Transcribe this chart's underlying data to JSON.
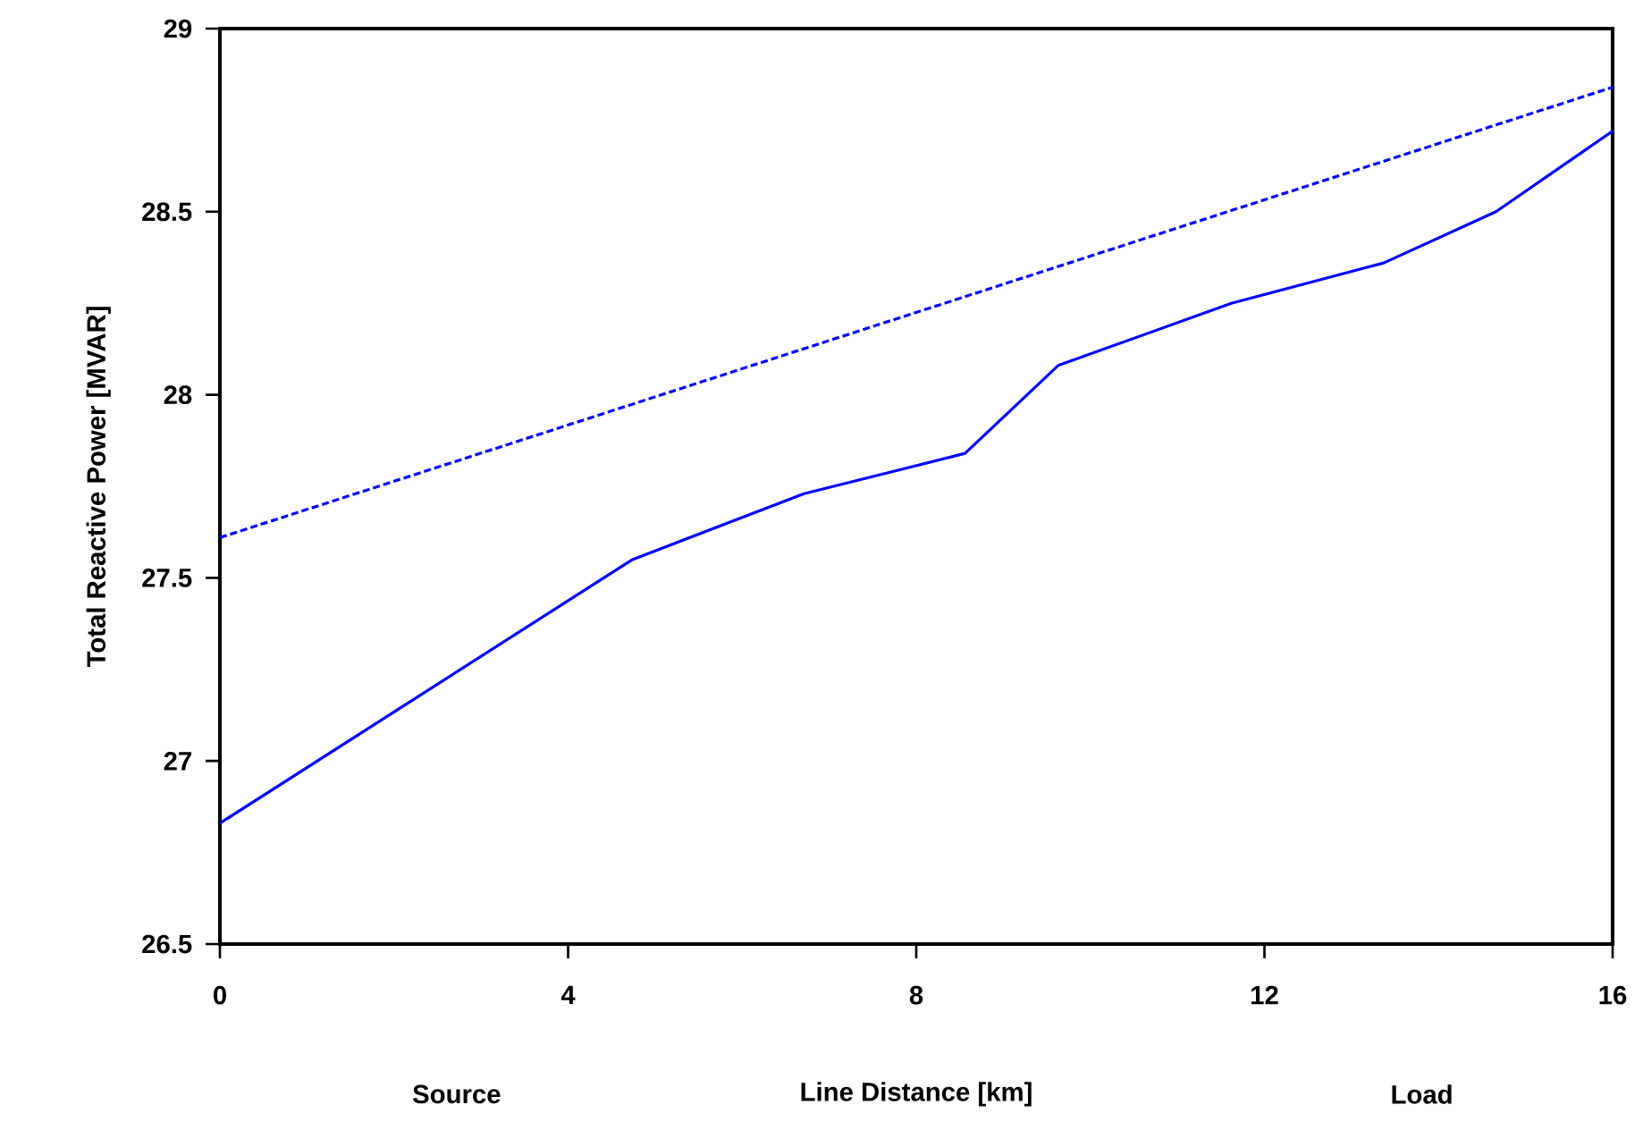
{
  "chart_data": {
    "type": "line",
    "xlabel": "Line Distance [km]",
    "ylabel": "Total Reactive Power [MVAR]",
    "annotations": [
      "Source",
      "Load"
    ],
    "xlim": [
      0,
      16
    ],
    "xticks": [
      0,
      4,
      8,
      12,
      16
    ],
    "ylim": [
      26.5,
      29
    ],
    "yticks": [
      26.5,
      27,
      27.5,
      28,
      28.5,
      29
    ],
    "marker": "none",
    "series": [
      {
        "color": "#0000ff",
        "line_style": "solid",
        "x": [
          0,
          4.74,
          6.71,
          8.56,
          9.63,
          11.62,
          13.37,
          14.66,
          16
        ],
        "values": [
          26.83,
          27.55,
          27.73,
          27.84,
          28.08,
          28.25,
          28.36,
          28.5,
          28.72
        ]
      },
      {
        "color": "#0000ff",
        "line_style": "dashed",
        "x": [
          0,
          16
        ],
        "values": [
          27.61,
          28.84
        ]
      }
    ]
  }
}
